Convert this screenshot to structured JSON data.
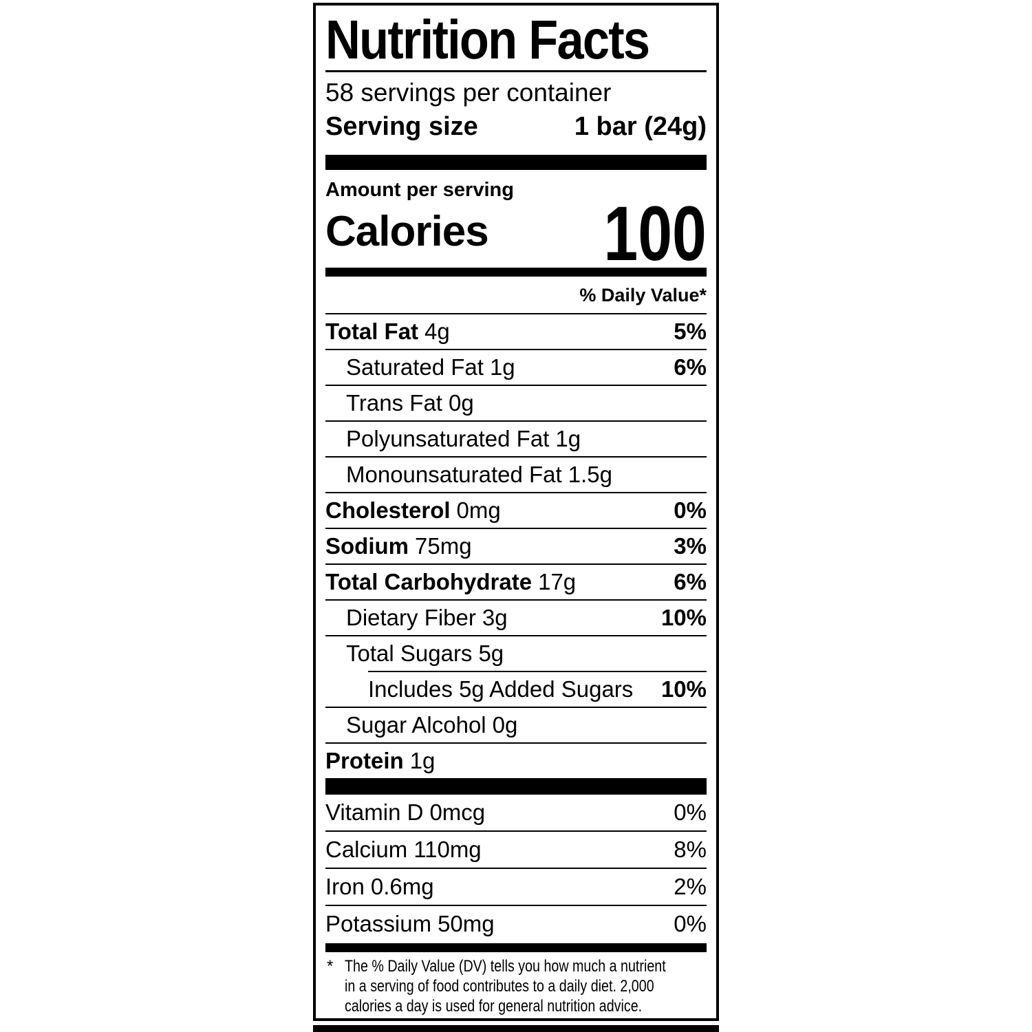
{
  "label": {
    "title": "Nutrition Facts",
    "servings_per_container": "58 servings per container",
    "serving_size": {
      "label": "Serving size",
      "value": "1 bar (24g)"
    },
    "amount_per_serving": "Amount per serving",
    "calories": {
      "label": "Calories",
      "value": "100"
    },
    "daily_value_header": "% Daily Value*",
    "nutrients": [
      {
        "name": "Total Fat",
        "amount": "4g",
        "dv": "5%"
      },
      {
        "name": "Saturated Fat",
        "amount": "1g",
        "dv": "6%"
      },
      {
        "name": "Trans Fat",
        "amount": "0g",
        "dv": ""
      },
      {
        "name": "Polyunsaturated Fat",
        "amount": "1g",
        "dv": ""
      },
      {
        "name": "Monounsaturated Fat",
        "amount": "1.5g",
        "dv": ""
      },
      {
        "name": "Cholesterol",
        "amount": "0mg",
        "dv": "0%"
      },
      {
        "name": "Sodium",
        "amount": "75mg",
        "dv": "3%"
      },
      {
        "name": "Total Carbohydrate",
        "amount": "17g",
        "dv": "6%"
      },
      {
        "name": "Dietary Fiber",
        "amount": "3g",
        "dv": "10%"
      },
      {
        "name": "Total Sugars",
        "amount": "5g",
        "dv": ""
      },
      {
        "name": "Includes 5g Added Sugars",
        "amount": "",
        "dv": "10%"
      },
      {
        "name": "Sugar Alcohol",
        "amount": "0g",
        "dv": ""
      },
      {
        "name": "Protein",
        "amount": "1g",
        "dv": ""
      }
    ],
    "vitamins": [
      {
        "name": "Vitamin D",
        "amount": "0mcg",
        "dv": "0%"
      },
      {
        "name": "Calcium",
        "amount": "110mg",
        "dv": "8%"
      },
      {
        "name": "Iron",
        "amount": "0.6mg",
        "dv": "2%"
      },
      {
        "name": "Potassium",
        "amount": "50mg",
        "dv": "0%"
      }
    ],
    "footnote": {
      "marker": "*",
      "lines": [
        "The % Daily Value (DV) tells you how much a nutrient",
        "in a serving of food contributes to a daily diet. 2,000",
        "calories a day is used for general nutrition advice."
      ]
    },
    "colors": {
      "ink": "#000000",
      "background": "#ffffff"
    }
  }
}
